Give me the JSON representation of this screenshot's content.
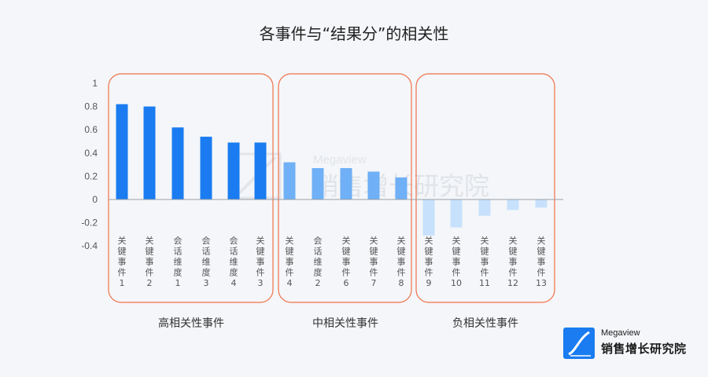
{
  "chart_data": {
    "type": "bar",
    "title": "各事件与“结果分”的相关性",
    "xlabel": "",
    "ylabel": "",
    "ylim": [
      -0.4,
      1
    ],
    "yticks": [
      1,
      0.8,
      0.6,
      0.4,
      0.2,
      0,
      -0.2,
      -0.4
    ],
    "grid": false,
    "categories": [
      "关键事件1",
      "关键事件2",
      "会话维度1",
      "会话维度3",
      "会话维度4",
      "关键事件3",
      "关键事件4",
      "会话维度2",
      "关键事件6",
      "关键事件7",
      "关键事件8",
      "关键事件9",
      "关键事件10",
      "关键事件11",
      "关键事件12",
      "关键事件13"
    ],
    "values": [
      0.82,
      0.8,
      0.62,
      0.54,
      0.49,
      0.49,
      0.32,
      0.27,
      0.27,
      0.24,
      0.19,
      -0.31,
      -0.24,
      -0.14,
      -0.09,
      -0.07
    ],
    "groups": [
      {
        "label": "高相关性事件",
        "start": 0,
        "end": 5,
        "color": "#1a7cf0"
      },
      {
        "label": "中相关性事件",
        "start": 6,
        "end": 10,
        "color": "#6fb0f7"
      },
      {
        "label": "负相关性事件",
        "start": 11,
        "end": 15,
        "color": "#c7e1fc"
      }
    ],
    "group_outline_color": "#f0714a"
  },
  "watermark": {
    "small": "Megaview",
    "big": "销售增长研究院"
  },
  "brand": {
    "small": "Megaview",
    "big": "销售增长研究院",
    "color": "#1a7cf0"
  }
}
